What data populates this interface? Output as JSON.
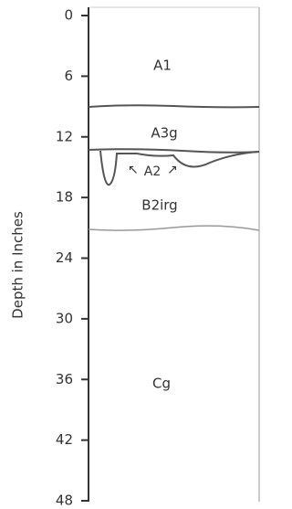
{
  "axis": {
    "label": "Depth in Inches",
    "ticks": [
      0,
      6,
      12,
      18,
      24,
      30,
      36,
      42,
      48
    ]
  },
  "horizons": [
    {
      "label": "A1"
    },
    {
      "label": "A3g"
    },
    {
      "label": "A2"
    },
    {
      "label": "B2irg"
    },
    {
      "label": "Cg"
    }
  ]
}
